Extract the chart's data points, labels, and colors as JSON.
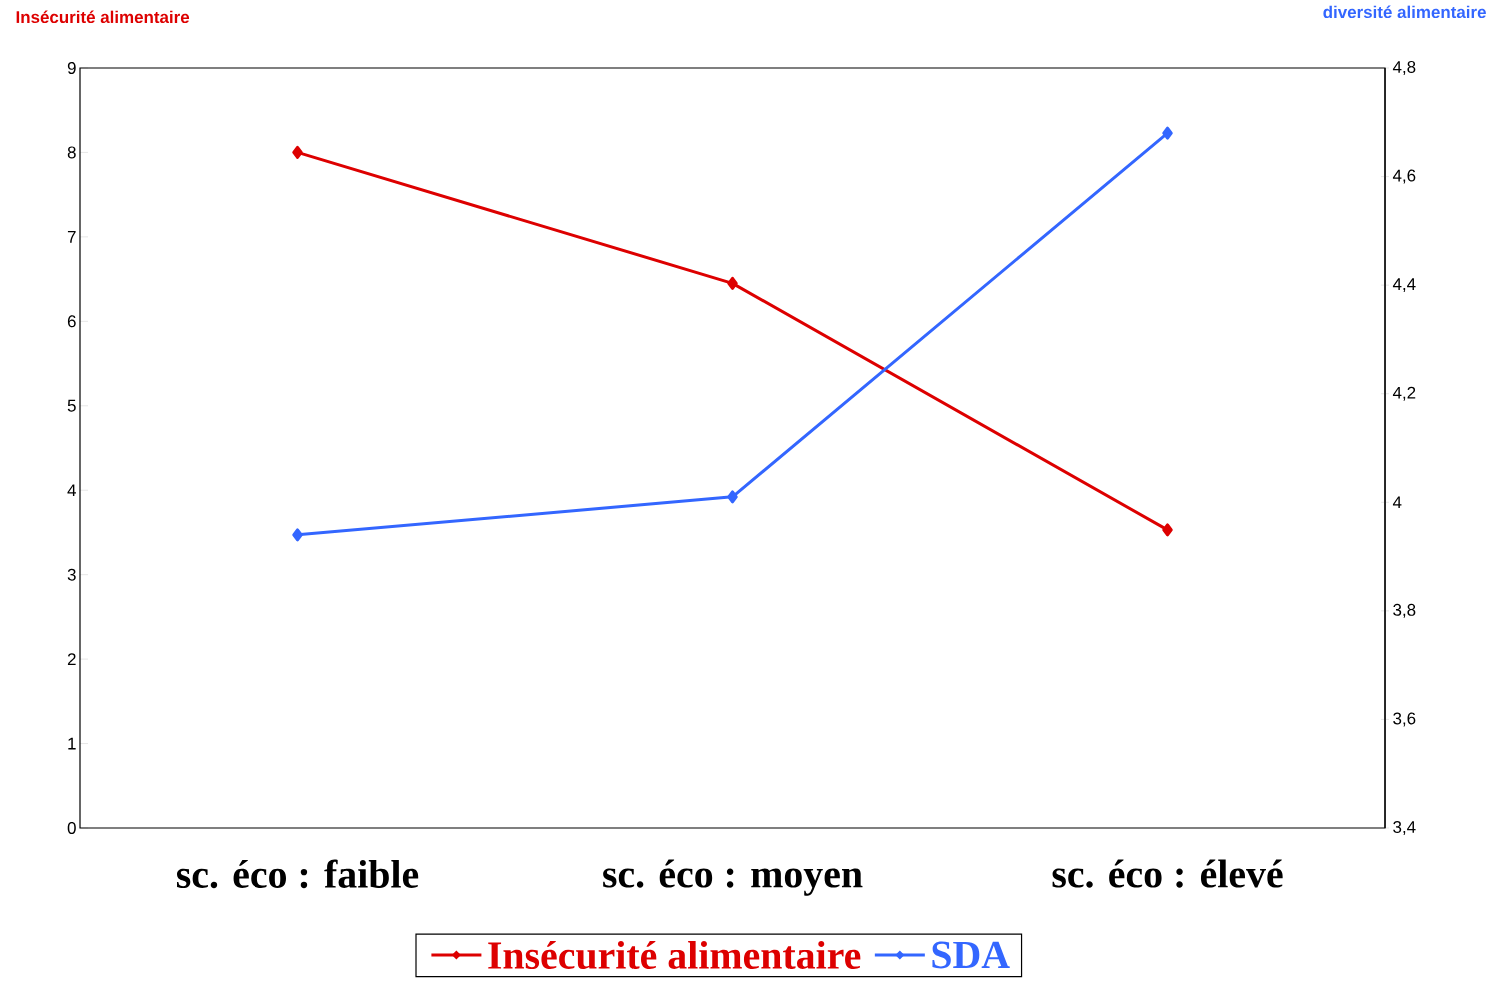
{
  "chart_data": {
    "type": "line",
    "ylabel": "Insécurité alimentaire",
    "y2label": "diversité alimentaire",
    "categories": [
      "sc. éco : faible",
      "sc. éco : moyen",
      "sc. éco : élevé"
    ],
    "series": [
      {
        "name": "Insécurité alimentaire",
        "color": "#dd0000",
        "values": [
          8.0,
          6.45,
          3.53
        ]
      },
      {
        "name": "SDA",
        "color": "#3366ff",
        "values": [
          3.94,
          4.01,
          4.68
        ],
        "axis": "y2"
      }
    ],
    "ylim": [
      0,
      9
    ],
    "yticks": [
      0,
      1,
      2,
      3,
      4,
      5,
      6,
      7,
      8,
      9
    ],
    "y2lim": [
      3.4,
      4.8
    ],
    "y2ticks": [
      {
        "value": 3.4,
        "label": "3,4"
      },
      {
        "value": 3.6,
        "label": "3,6"
      },
      {
        "value": 3.8,
        "label": "3,8"
      },
      4,
      {
        "value": 4.2,
        "label": "4,2"
      },
      {
        "value": 4.4,
        "label": "4,4"
      },
      {
        "value": 4.6,
        "label": "4,6"
      },
      {
        "value": 4.8,
        "label": "4,8"
      }
    ],
    "marker": "diamond",
    "legend": "bottom",
    "grid": false
  }
}
